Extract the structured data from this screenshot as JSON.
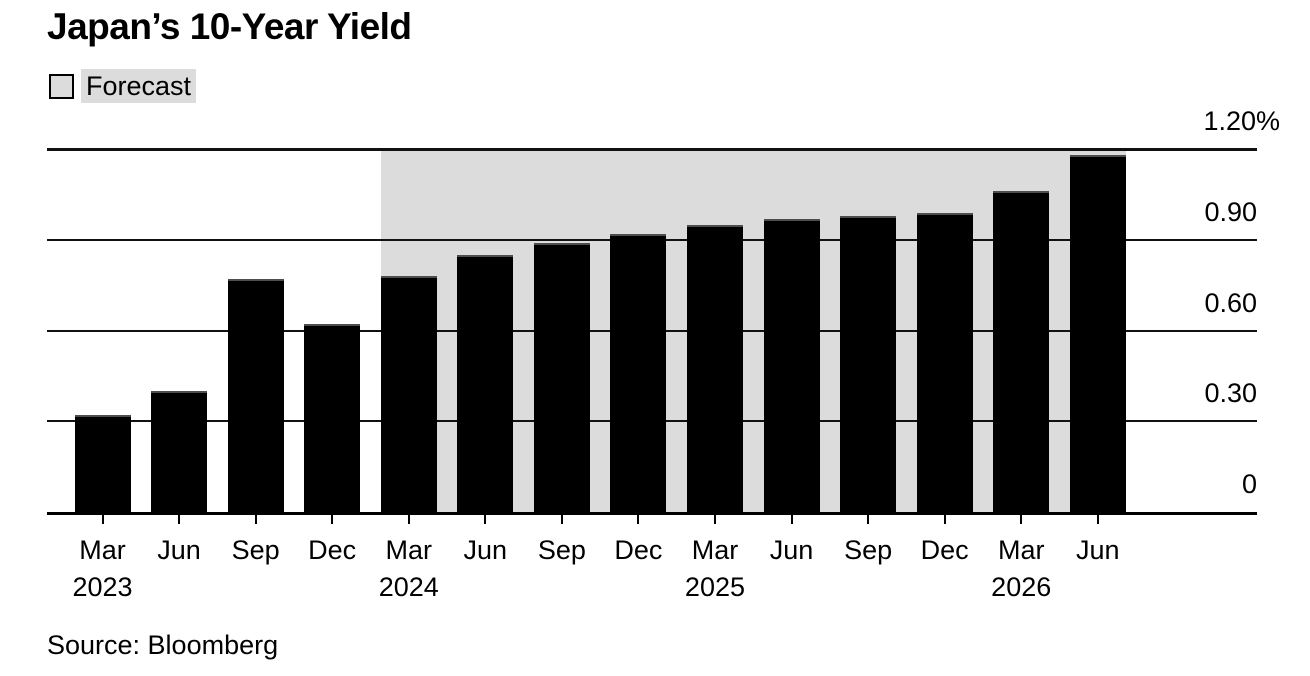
{
  "title": "Japan’s 10-Year Yield",
  "legend": {
    "label": "Forecast"
  },
  "source": "Source: Bloomberg",
  "colors": {
    "bar": "#000000",
    "forecast_region": "#DCDCDC",
    "grid": "#111111",
    "text": "#000000",
    "background": "#FFFFFF"
  },
  "chart_data": {
    "type": "bar",
    "title": "Japan’s 10-Year Yield",
    "xlabel": "",
    "ylabel": "",
    "unit_suffix": "%",
    "ylim": [
      0,
      1.2
    ],
    "grid": true,
    "legend_position": "top-left",
    "legend_entries": [
      "Forecast"
    ],
    "y_ticks": [
      {
        "value": 0.0,
        "label": "0"
      },
      {
        "value": 0.3,
        "label": "0.30"
      },
      {
        "value": 0.6,
        "label": "0.60"
      },
      {
        "value": 0.9,
        "label": "0.90"
      },
      {
        "value": 1.2,
        "label": "1.20%"
      }
    ],
    "categories": [
      "Mar 2023",
      "Jun 2023",
      "Sep 2023",
      "Dec 2023",
      "Mar 2024",
      "Jun 2024",
      "Sep 2024",
      "Dec 2024",
      "Mar 2025",
      "Jun 2025",
      "Sep 2025",
      "Dec 2025",
      "Mar 2026",
      "Jun 2026"
    ],
    "bars": [
      {
        "month": "Mar",
        "year": "2023",
        "value": 0.32,
        "forecast": false,
        "show_year": true
      },
      {
        "month": "Jun",
        "year": "2023",
        "value": 0.4,
        "forecast": false,
        "show_year": false
      },
      {
        "month": "Sep",
        "year": "2023",
        "value": 0.77,
        "forecast": false,
        "show_year": false
      },
      {
        "month": "Dec",
        "year": "2023",
        "value": 0.62,
        "forecast": false,
        "show_year": false
      },
      {
        "month": "Mar",
        "year": "2024",
        "value": 0.78,
        "forecast": true,
        "show_year": true
      },
      {
        "month": "Jun",
        "year": "2024",
        "value": 0.85,
        "forecast": true,
        "show_year": false
      },
      {
        "month": "Sep",
        "year": "2024",
        "value": 0.89,
        "forecast": true,
        "show_year": false
      },
      {
        "month": "Dec",
        "year": "2024",
        "value": 0.92,
        "forecast": true,
        "show_year": false
      },
      {
        "month": "Mar",
        "year": "2025",
        "value": 0.95,
        "forecast": true,
        "show_year": true
      },
      {
        "month": "Jun",
        "year": "2025",
        "value": 0.97,
        "forecast": true,
        "show_year": false
      },
      {
        "month": "Sep",
        "year": "2025",
        "value": 0.98,
        "forecast": true,
        "show_year": false
      },
      {
        "month": "Dec",
        "year": "2025",
        "value": 0.99,
        "forecast": true,
        "show_year": false
      },
      {
        "month": "Mar",
        "year": "2026",
        "value": 1.06,
        "forecast": true,
        "show_year": true
      },
      {
        "month": "Jun",
        "year": "2026",
        "value": 1.18,
        "forecast": true,
        "show_year": false
      }
    ]
  }
}
